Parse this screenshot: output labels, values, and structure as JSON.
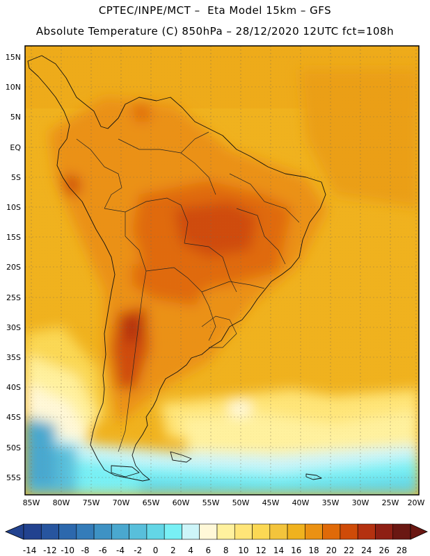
{
  "header": {
    "title_line1": "CPTEC/INPE/MCT –  Eta Model 15km – GFS",
    "title_line2": "Absolute Temperature (C) 850hPa – 28/12/2020 12UTC fct=108h"
  },
  "map": {
    "lat_labels": [
      "15N",
      "10N",
      "5N",
      "EQ",
      "5S",
      "10S",
      "15S",
      "20S",
      "25S",
      "30S",
      "35S",
      "40S",
      "45S",
      "50S",
      "55S"
    ],
    "lon_labels": [
      "85W",
      "80W",
      "75W",
      "70W",
      "65W",
      "60W",
      "55W",
      "50W",
      "45W",
      "40W",
      "35W",
      "30W",
      "25W",
      "20W"
    ]
  },
  "colorbar": {
    "labels": [
      "-14",
      "-12",
      "-10",
      "-8",
      "-6",
      "-4",
      "-2",
      "0",
      "2",
      "4",
      "6",
      "8",
      "10",
      "12",
      "14",
      "16",
      "18",
      "20",
      "22",
      "24",
      "26",
      "28"
    ],
    "colors": [
      "#22428f",
      "#27559f",
      "#2c68ad",
      "#347cb9",
      "#3e92c4",
      "#4aa8cf",
      "#58bfdb",
      "#63d6e6",
      "#78f0f5",
      "#cdf5f9",
      "#fff8d8",
      "#fff19e",
      "#ffe578",
      "#fbd854",
      "#f3c43c",
      "#f0b21e",
      "#eb9112",
      "#e06a08",
      "#cf4b08",
      "#b43110",
      "#8e1f14",
      "#6a1712"
    ]
  }
}
